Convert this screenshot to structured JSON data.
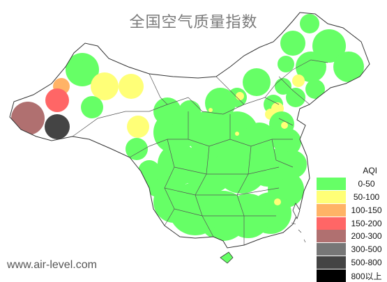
{
  "title": "全国空气质量指数",
  "watermark": "www.air-level.com",
  "legend": {
    "title": "AQI",
    "items": [
      {
        "label": "0-50",
        "color": "#66ff66"
      },
      {
        "label": "50-100",
        "color": "#ffff77"
      },
      {
        "label": "100-150",
        "color": "#ffb366"
      },
      {
        "label": "150-200",
        "color": "#ff6666"
      },
      {
        "label": "200-300",
        "color": "#b07070"
      },
      {
        "label": "300-500",
        "color": "#777777"
      },
      {
        "label": "500-800",
        "color": "#444444"
      },
      {
        "label": "800以上",
        "color": "#000000"
      }
    ]
  }
}
